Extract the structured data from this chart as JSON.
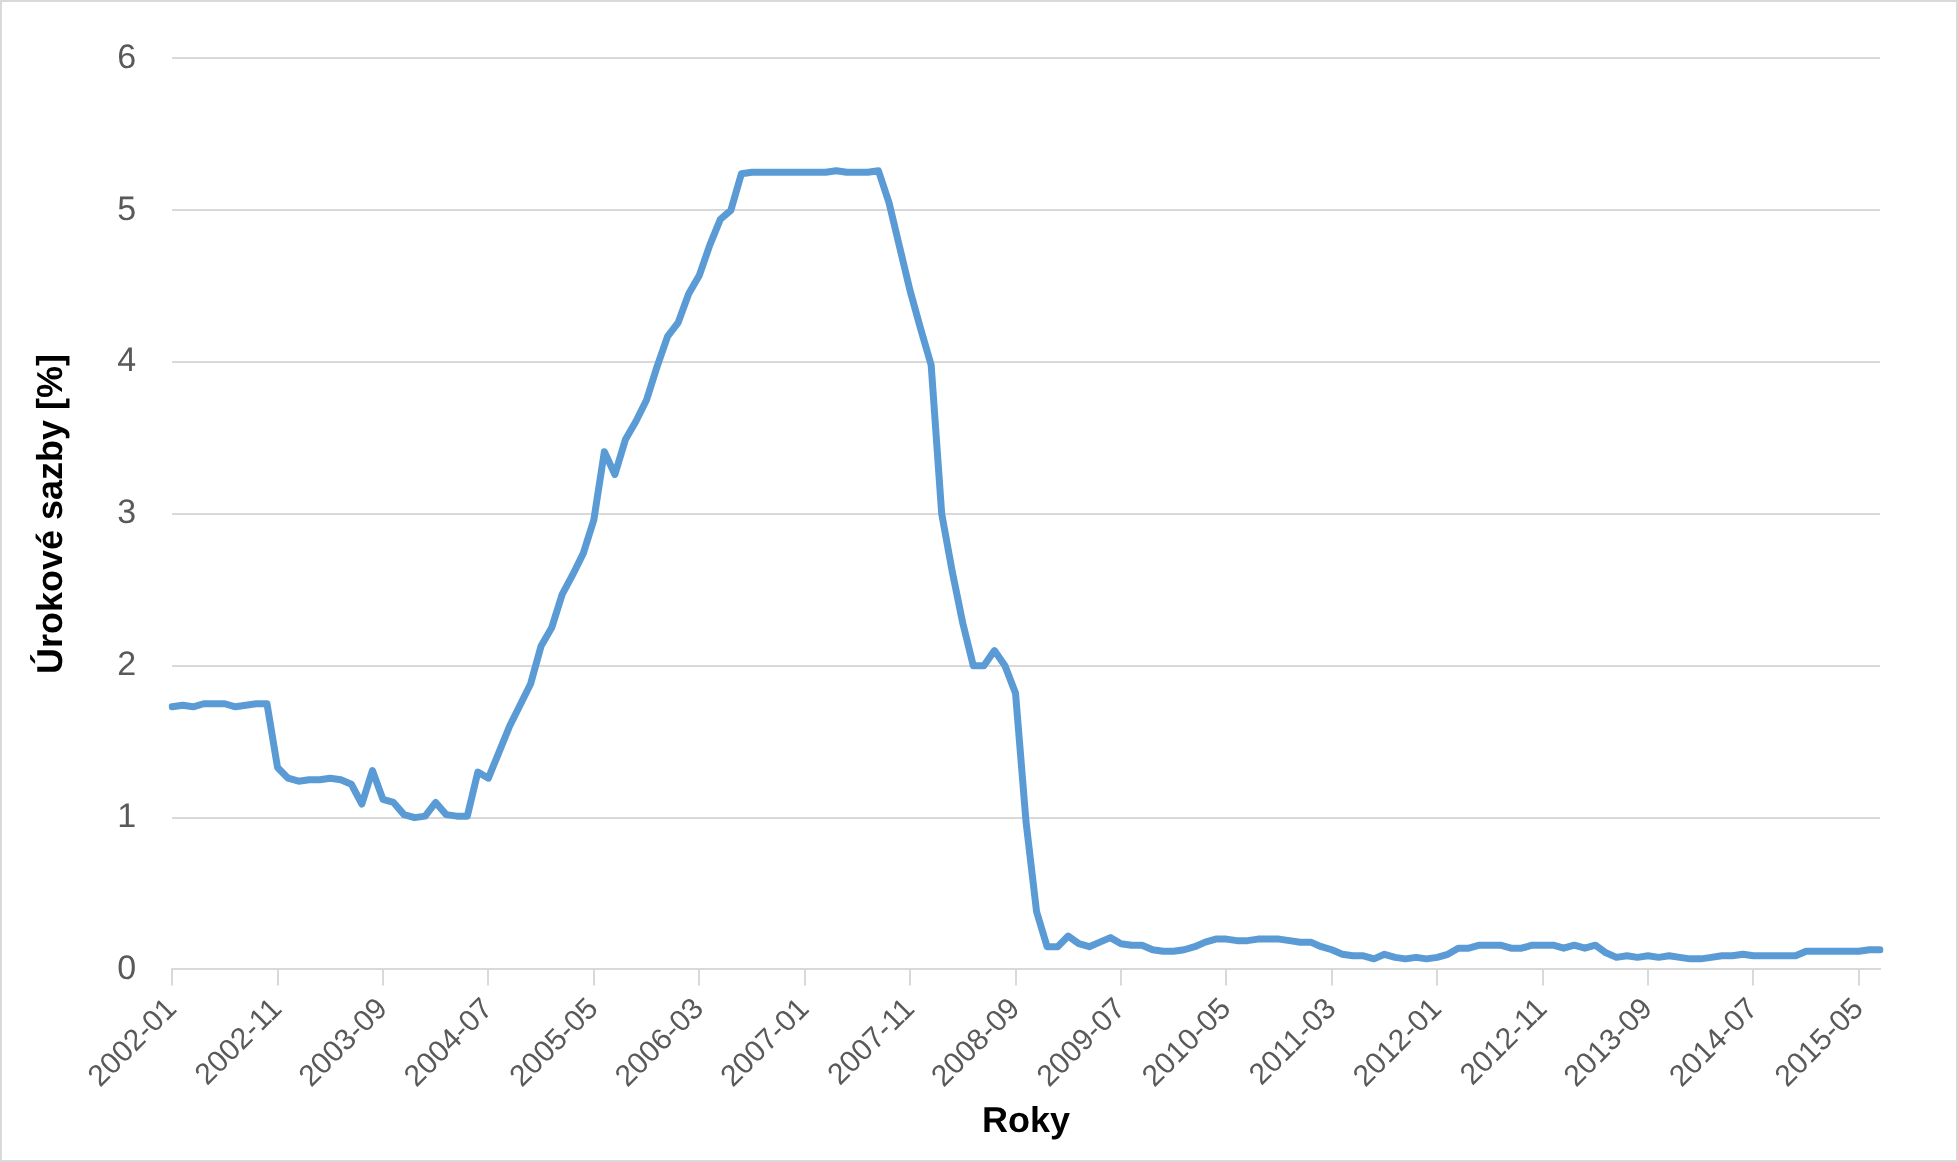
{
  "chart_data": {
    "type": "line",
    "xlabel": "Roky",
    "ylabel": "Úrokové sazby [%]",
    "categories": [
      "2002-01",
      null,
      null,
      null,
      null,
      null,
      null,
      null,
      null,
      null,
      "2002-11",
      null,
      null,
      null,
      null,
      null,
      null,
      null,
      null,
      null,
      "2003-09",
      null,
      null,
      null,
      null,
      null,
      null,
      null,
      null,
      null,
      "2004-07",
      null,
      null,
      null,
      null,
      null,
      null,
      null,
      null,
      null,
      "2005-05",
      null,
      null,
      null,
      null,
      null,
      null,
      null,
      null,
      null,
      "2006-03",
      null,
      null,
      null,
      null,
      null,
      null,
      null,
      null,
      null,
      "2007-01",
      null,
      null,
      null,
      null,
      null,
      null,
      null,
      null,
      null,
      "2007-11",
      null,
      null,
      null,
      null,
      null,
      null,
      null,
      null,
      null,
      "2008-09",
      null,
      null,
      null,
      null,
      null,
      null,
      null,
      null,
      null,
      "2009-07",
      null,
      null,
      null,
      null,
      null,
      null,
      null,
      null,
      null,
      "2010-05",
      null,
      null,
      null,
      null,
      null,
      null,
      null,
      null,
      null,
      "2011-03",
      null,
      null,
      null,
      null,
      null,
      null,
      null,
      null,
      null,
      "2012-01",
      null,
      null,
      null,
      null,
      null,
      null,
      null,
      null,
      null,
      "2012-11",
      null,
      null,
      null,
      null,
      null,
      null,
      null,
      null,
      null,
      "2013-09",
      null,
      null,
      null,
      null,
      null,
      null,
      null,
      null,
      null,
      "2014-07",
      null,
      null,
      null,
      null,
      null,
      null,
      null,
      null,
      null,
      "2015-05",
      null,
      null
    ],
    "series": [
      {
        "color": "#5b9bd5",
        "values": [
          1.73,
          1.74,
          1.73,
          1.75,
          1.75,
          1.75,
          1.73,
          1.74,
          1.75,
          1.75,
          1.33,
          1.26,
          1.24,
          1.25,
          1.25,
          1.26,
          1.25,
          1.22,
          1.09,
          1.31,
          1.12,
          1.1,
          1.02,
          1.0,
          1.01,
          1.1,
          1.02,
          1.01,
          1.01,
          1.3,
          1.26,
          1.43,
          1.6,
          1.74,
          1.88,
          2.13,
          2.25,
          2.47,
          2.6,
          2.74,
          2.96,
          3.41,
          3.26,
          3.49,
          3.61,
          3.75,
          3.97,
          4.17,
          4.26,
          4.45,
          4.57,
          4.77,
          4.94,
          5.0,
          5.24,
          5.25,
          5.25,
          5.25,
          5.25,
          5.25,
          5.25,
          5.25,
          5.25,
          5.26,
          5.25,
          5.25,
          5.25,
          5.26,
          5.05,
          4.76,
          4.47,
          4.22,
          3.98,
          3.0,
          2.62,
          2.28,
          2.0,
          2.0,
          2.1,
          2.0,
          1.82,
          0.97,
          0.38,
          0.15,
          0.15,
          0.22,
          0.17,
          0.15,
          0.18,
          0.21,
          0.17,
          0.16,
          0.16,
          0.13,
          0.12,
          0.12,
          0.13,
          0.15,
          0.18,
          0.2,
          0.2,
          0.19,
          0.19,
          0.2,
          0.2,
          0.2,
          0.19,
          0.18,
          0.18,
          0.15,
          0.13,
          0.1,
          0.09,
          0.09,
          0.07,
          0.1,
          0.08,
          0.07,
          0.08,
          0.07,
          0.08,
          0.1,
          0.14,
          0.14,
          0.16,
          0.16,
          0.16,
          0.14,
          0.14,
          0.16,
          0.16,
          0.16,
          0.14,
          0.16,
          0.14,
          0.16,
          0.11,
          0.08,
          0.09,
          0.08,
          0.09,
          0.08,
          0.09,
          0.08,
          0.07,
          0.07,
          0.08,
          0.09,
          0.09,
          0.1,
          0.09,
          0.09,
          0.09,
          0.09,
          0.09,
          0.12,
          0.12,
          0.12,
          0.12,
          0.12,
          0.12,
          0.13,
          0.13
        ]
      }
    ],
    "ylim": [
      0,
      6
    ],
    "yticks": [
      0,
      1,
      2,
      3,
      4,
      5,
      6
    ],
    "grid": "y",
    "legend": false,
    "marker": "none",
    "line_style": "solid"
  }
}
